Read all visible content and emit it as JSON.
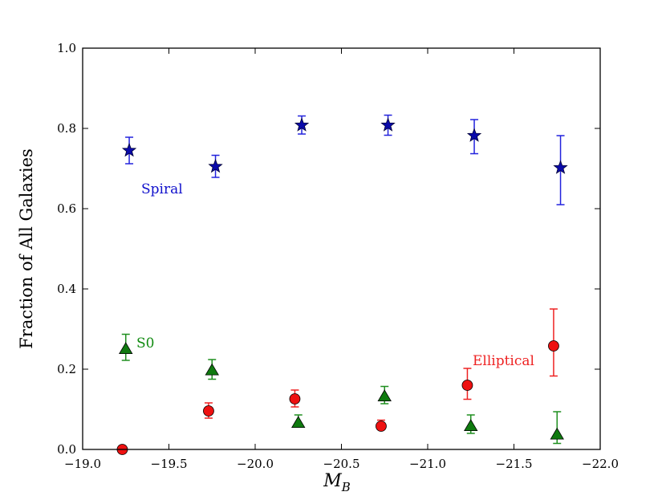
{
  "chart_data": {
    "type": "scatter",
    "title": "",
    "xlabel": "M",
    "xlabel_sub": "B",
    "ylabel": "Fraction of All Galaxies",
    "xlim": [
      -19.0,
      -22.0
    ],
    "ylim": [
      0.0,
      1.0
    ],
    "x_inverted": true,
    "grid": false,
    "x_ticks": [
      -19.0,
      -19.5,
      -20.0,
      -20.5,
      -21.0,
      -21.5,
      -22.0
    ],
    "x_tick_labels": [
      "−19.0",
      "−19.5",
      "−20.0",
      "−20.5",
      "−21.0",
      "−21.5",
      "−22.0"
    ],
    "y_ticks": [
      0.0,
      0.2,
      0.4,
      0.6,
      0.8,
      1.0
    ],
    "y_tick_labels": [
      "0.0",
      "0.2",
      "0.4",
      "0.6",
      "0.8",
      "1.0"
    ],
    "series": [
      {
        "name": "Spiral",
        "marker": "star",
        "color": "#0a0aaa",
        "error_color": "#2222dd",
        "label_color": "#1010cc",
        "x": [
          -19.27,
          -19.77,
          -20.27,
          -20.77,
          -21.27,
          -21.77
        ],
        "y": [
          0.745,
          0.705,
          0.808,
          0.808,
          0.782,
          0.702
        ],
        "y_err_low": [
          0.033,
          0.027,
          0.022,
          0.025,
          0.045,
          0.092
        ],
        "y_err_high": [
          0.033,
          0.028,
          0.023,
          0.025,
          0.04,
          0.08
        ]
      },
      {
        "name": "S0",
        "marker": "triangle",
        "color": "#0f7a0f",
        "error_color": "#1f8f1f",
        "label_color": "#0f8a0f",
        "x": [
          -19.25,
          -19.75,
          -20.25,
          -20.75,
          -21.25,
          -21.75
        ],
        "y": [
          0.25,
          0.197,
          0.066,
          0.132,
          0.058,
          0.037
        ],
        "y_err_low": [
          0.028,
          0.022,
          0.0,
          0.018,
          0.018,
          0.022
        ],
        "y_err_high": [
          0.037,
          0.027,
          0.02,
          0.025,
          0.028,
          0.057
        ]
      },
      {
        "name": "Elliptical",
        "marker": "circle",
        "color": "#ee1111",
        "error_color": "#ee2222",
        "label_color": "#ee2222",
        "x": [
          -19.23,
          -19.73,
          -20.23,
          -20.73,
          -21.23,
          -21.73
        ],
        "y": [
          0.0,
          0.096,
          0.126,
          0.058,
          0.16,
          0.258
        ],
        "y_err_low": [
          0.0,
          0.018,
          0.02,
          0.0,
          0.035,
          0.075
        ],
        "y_err_high": [
          0.0,
          0.02,
          0.022,
          0.015,
          0.042,
          0.092
        ]
      }
    ],
    "annotations": [
      {
        "text": "Spiral",
        "series": "Spiral"
      },
      {
        "text": "S0",
        "series": "S0"
      },
      {
        "text": "Elliptical",
        "series": "Elliptical"
      }
    ]
  }
}
